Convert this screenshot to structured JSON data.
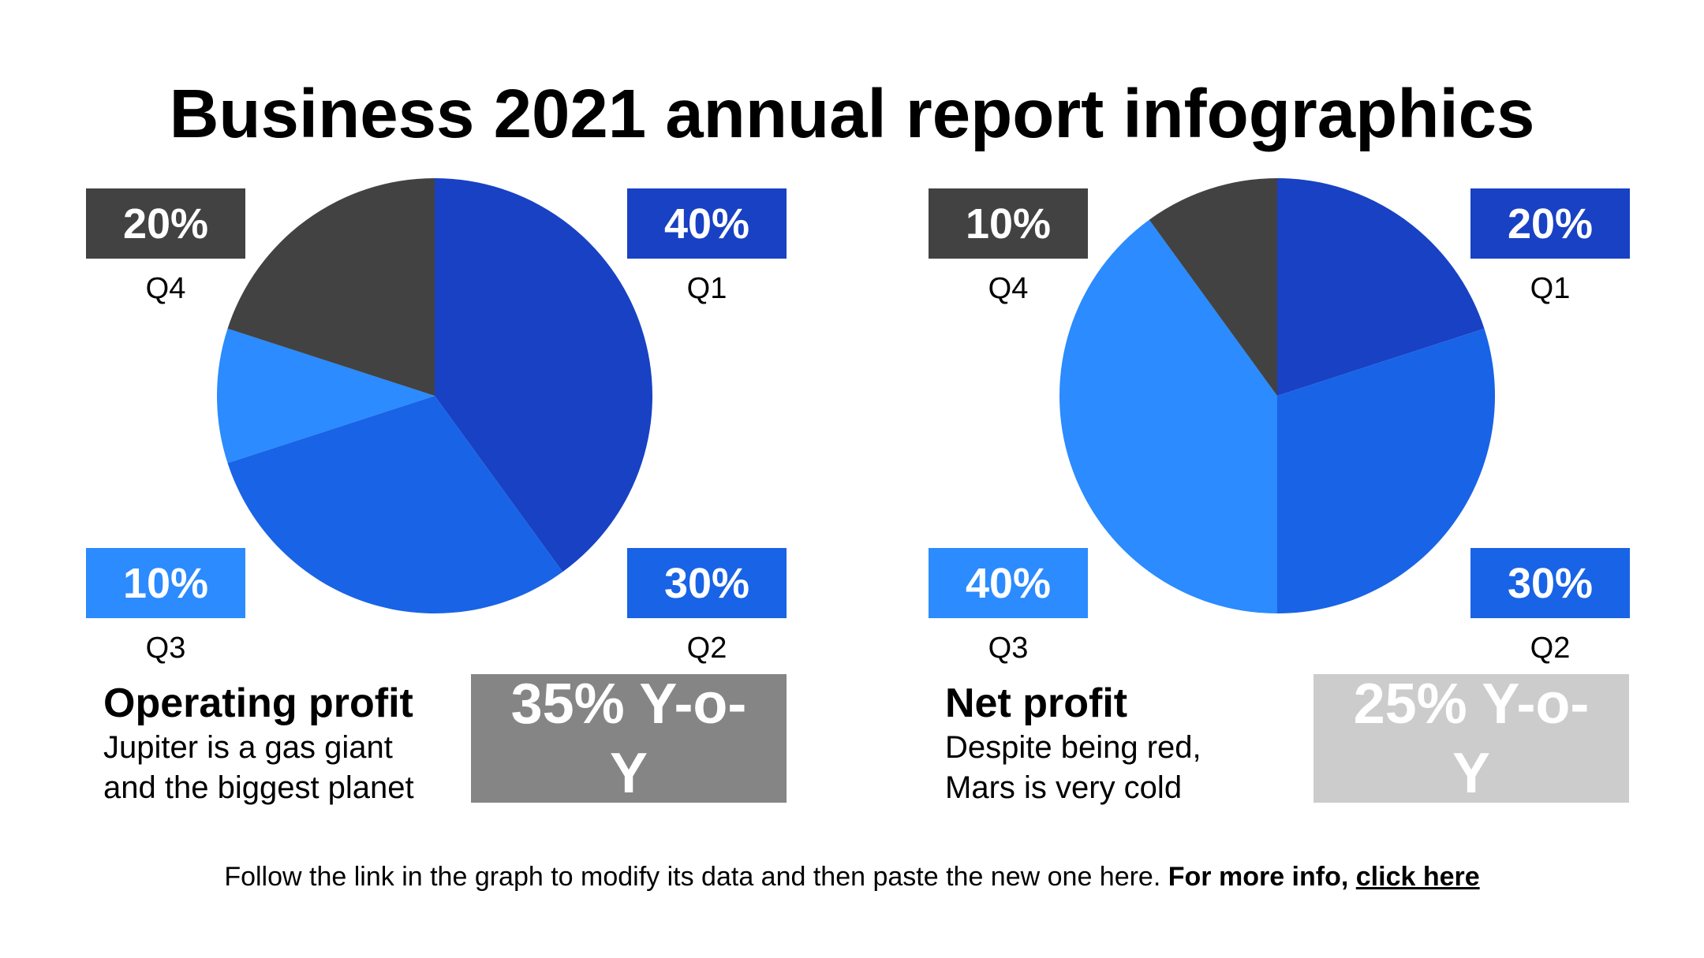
{
  "title": "Business 2021 annual report infographics",
  "colors": {
    "Q1": "#1841c4",
    "Q2": "#1963e6",
    "Q3": "#2b8bff",
    "Q4": "#424242"
  },
  "chart_data": [
    {
      "type": "pie",
      "categories": [
        "Q1",
        "Q2",
        "Q3",
        "Q4"
      ],
      "values": [
        40,
        30,
        10,
        20
      ],
      "labels": [
        "40%",
        "30%",
        "10%",
        "20%"
      ]
    },
    {
      "type": "pie",
      "categories": [
        "Q1",
        "Q2",
        "Q3",
        "Q4"
      ],
      "values": [
        20,
        30,
        40,
        10
      ],
      "labels": [
        "20%",
        "30%",
        "40%",
        "10%"
      ]
    }
  ],
  "metrics": [
    {
      "title": "Operating profit",
      "desc_line1": "Jupiter is a gas giant",
      "desc_line2": "and the biggest planet",
      "yoy_line1": "35% Y-o-",
      "yoy_line2": "Y",
      "yoy_color": "#858585"
    },
    {
      "title": "Net profit",
      "desc_line1": "Despite being red,",
      "desc_line2": "Mars is very cold",
      "yoy_line1": "25% Y-o-",
      "yoy_line2": "Y",
      "yoy_color": "#cccccc"
    }
  ],
  "footer": {
    "text": "Follow the link in the graph to modify its data and then paste the new one here.",
    "bold": "For more info,",
    "link": "click here"
  }
}
